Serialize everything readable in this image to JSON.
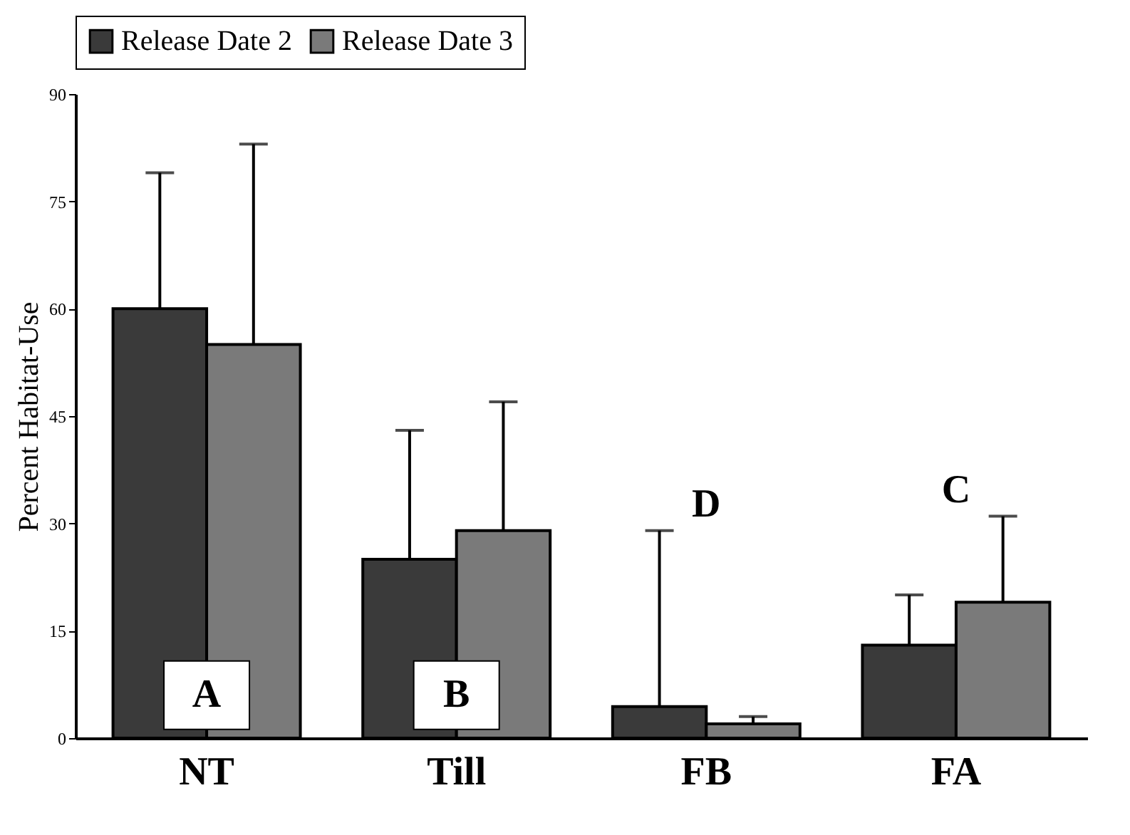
{
  "chart_data": {
    "type": "bar",
    "ylabel": "Percent Habitat-Use",
    "categories": [
      "NT",
      "Till",
      "FB",
      "FA"
    ],
    "series": [
      {
        "name": "Release Date 2",
        "color": "#3a3a3a",
        "values": [
          60,
          25,
          4.4,
          13
        ],
        "errors": [
          [
            60,
            79
          ],
          [
            25,
            43
          ],
          [
            4.4,
            29
          ],
          [
            13,
            20
          ]
        ]
      },
      {
        "name": "Release Date 3",
        "color": "#7a7a7a",
        "values": [
          55,
          29,
          2,
          19
        ],
        "errors": [
          [
            55,
            83
          ],
          [
            29,
            47
          ],
          [
            2,
            3
          ],
          [
            19,
            31
          ]
        ]
      }
    ],
    "annotations": [
      {
        "text": "A",
        "x": "NT",
        "y": 6
      },
      {
        "text": "B",
        "x": "Till",
        "y": 6
      },
      "D",
      "C"
    ],
    "ylim": [
      0,
      90
    ],
    "yticks": [
      0,
      15,
      30,
      45,
      60,
      75,
      90
    ],
    "grid": false,
    "legend": "top"
  }
}
